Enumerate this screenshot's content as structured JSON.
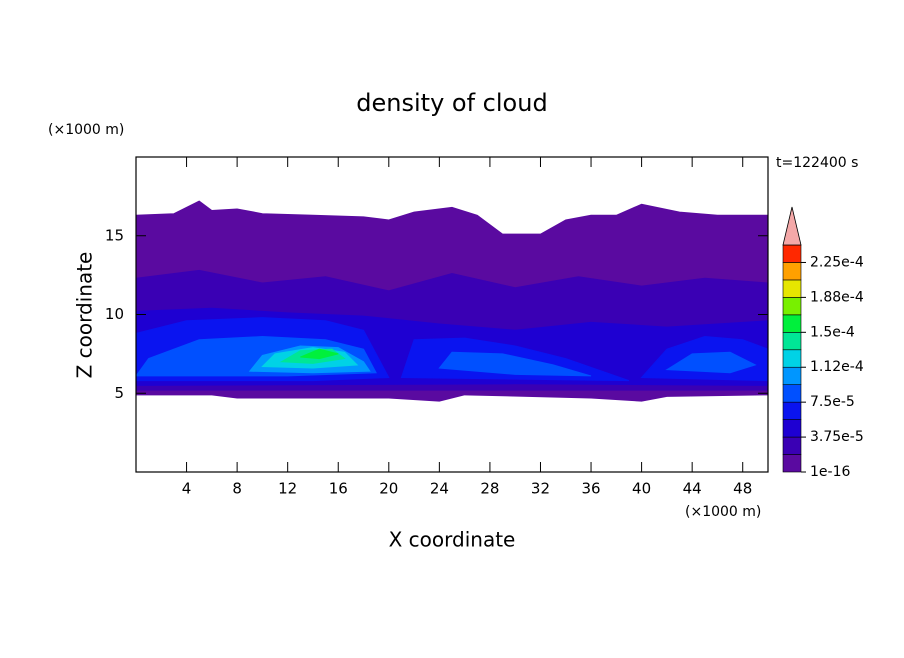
{
  "chart_data": {
    "type": "contour",
    "title": "density of cloud",
    "xlabel": "X coordinate",
    "ylabel": "Z coordinate",
    "xunit": "(×1000 m)",
    "yunit": "(×1000 m)",
    "annotation": "t=122400 s",
    "xlim": [
      0,
      50
    ],
    "xticks": [
      4,
      8,
      12,
      16,
      20,
      24,
      28,
      32,
      36,
      40,
      44,
      48
    ],
    "ylim": [
      0,
      20
    ],
    "yticks": [
      5,
      10,
      15
    ],
    "clim": [
      0,
      0.00024375
    ],
    "cticks": [
      {
        "value": 1e-16,
        "label": "1e-16"
      },
      {
        "value": 3.75e-05,
        "label": "3.75e-5"
      },
      {
        "value": 7.5e-05,
        "label": "7.5e-5"
      },
      {
        "value": 0.0001125,
        "label": "1.12e-4"
      },
      {
        "value": 0.00015,
        "label": "1.5e-4"
      },
      {
        "value": 0.0001875,
        "label": "1.88e-4"
      },
      {
        "value": 0.000225,
        "label": "2.25e-4"
      }
    ],
    "colors": [
      "#5a0aa0",
      "#3a00b4",
      "#1e00d2",
      "#0a14f0",
      "#0050ff",
      "#0096ff",
      "#00d2e6",
      "#00e696",
      "#00f03c",
      "#78f000",
      "#e6e600",
      "#ffa000",
      "#ff2800"
    ],
    "extend_color": "#f4a8a8",
    "contours": [
      {
        "level": 1e-16,
        "points": [
          [
            0,
            4.9
          ],
          [
            0,
            16.3
          ],
          [
            3,
            16.4
          ],
          [
            5,
            17.2
          ],
          [
            6,
            16.6
          ],
          [
            8,
            16.7
          ],
          [
            10,
            16.4
          ],
          [
            14,
            16.3
          ],
          [
            18,
            16.2
          ],
          [
            20,
            16.0
          ],
          [
            22,
            16.5
          ],
          [
            25,
            16.8
          ],
          [
            27,
            16.3
          ],
          [
            29,
            15.1
          ],
          [
            32,
            15.1
          ],
          [
            34,
            16.0
          ],
          [
            36,
            16.3
          ],
          [
            38,
            16.3
          ],
          [
            40,
            17.0
          ],
          [
            43,
            16.5
          ],
          [
            46,
            16.3
          ],
          [
            50,
            16.3
          ],
          [
            50,
            4.9
          ],
          [
            42,
            4.8
          ],
          [
            40,
            4.5
          ],
          [
            36,
            4.7
          ],
          [
            26,
            4.9
          ],
          [
            24,
            4.5
          ],
          [
            20,
            4.7
          ],
          [
            8,
            4.7
          ],
          [
            6,
            4.9
          ]
        ]
      },
      {
        "level": 1.875e-05,
        "points": [
          [
            0,
            5.2
          ],
          [
            0,
            12.3
          ],
          [
            5,
            12.8
          ],
          [
            10,
            12.0
          ],
          [
            15,
            12.4
          ],
          [
            20,
            11.5
          ],
          [
            25,
            12.6
          ],
          [
            30,
            11.7
          ],
          [
            35,
            12.4
          ],
          [
            40,
            11.8
          ],
          [
            45,
            12.3
          ],
          [
            50,
            12.0
          ],
          [
            50,
            5.2
          ],
          [
            30,
            5.2
          ]
        ]
      },
      {
        "level": 3.75e-05,
        "points": [
          [
            0,
            5.5
          ],
          [
            0,
            10.2
          ],
          [
            6,
            10.4
          ],
          [
            12,
            10.1
          ],
          [
            18,
            9.9
          ],
          [
            24,
            9.4
          ],
          [
            30,
            9.0
          ],
          [
            36,
            9.5
          ],
          [
            42,
            9.2
          ],
          [
            50,
            9.6
          ],
          [
            50,
            5.5
          ],
          [
            30,
            5.6
          ]
        ]
      },
      {
        "level": 5.625e-05,
        "points": [
          [
            0,
            5.8
          ],
          [
            0,
            8.8
          ],
          [
            4,
            9.6
          ],
          [
            10,
            9.8
          ],
          [
            15,
            9.6
          ],
          [
            18,
            9.0
          ],
          [
            20,
            6.0
          ],
          [
            14,
            5.8
          ]
        ]
      },
      {
        "level": 5.625e-05,
        "points": [
          [
            21,
            6.0
          ],
          [
            22,
            8.4
          ],
          [
            26,
            8.5
          ],
          [
            30,
            8.0
          ],
          [
            34,
            7.2
          ],
          [
            39,
            5.8
          ],
          [
            30,
            5.9
          ]
        ]
      },
      {
        "level": 5.625e-05,
        "points": [
          [
            40,
            6.0
          ],
          [
            42,
            7.8
          ],
          [
            45,
            8.6
          ],
          [
            48,
            8.4
          ],
          [
            50,
            7.8
          ],
          [
            50,
            5.8
          ]
        ]
      },
      {
        "level": 7.5e-05,
        "points": [
          [
            0,
            6.1
          ],
          [
            1,
            7.2
          ],
          [
            5,
            8.4
          ],
          [
            10,
            8.6
          ],
          [
            15,
            8.4
          ],
          [
            18,
            7.8
          ],
          [
            19,
            6.3
          ],
          [
            12,
            6.1
          ]
        ]
      },
      {
        "level": 7.5e-05,
        "points": [
          [
            24,
            6.6
          ],
          [
            25,
            7.6
          ],
          [
            29,
            7.5
          ],
          [
            33,
            6.8
          ],
          [
            36,
            6.1
          ],
          [
            30,
            6.2
          ]
        ]
      },
      {
        "level": 7.5e-05,
        "points": [
          [
            42,
            6.5
          ],
          [
            44,
            7.5
          ],
          [
            47,
            7.6
          ],
          [
            49,
            6.8
          ],
          [
            47,
            6.3
          ]
        ]
      },
      {
        "level": 9.375e-05,
        "points": [
          [
            9,
            6.4
          ],
          [
            10,
            7.4
          ],
          [
            13,
            8.0
          ],
          [
            16,
            7.9
          ],
          [
            18,
            7.0
          ],
          [
            18.5,
            6.4
          ],
          [
            14,
            6.3
          ]
        ]
      },
      {
        "level": 0.0001125,
        "points": [
          [
            10,
            6.7
          ],
          [
            11,
            7.5
          ],
          [
            14,
            7.9
          ],
          [
            16.5,
            7.6
          ],
          [
            17.5,
            6.8
          ],
          [
            14,
            6.6
          ]
        ]
      },
      {
        "level": 0.00013125,
        "points": [
          [
            11.5,
            7.0
          ],
          [
            13,
            7.7
          ],
          [
            15.5,
            7.8
          ],
          [
            16.5,
            7.2
          ],
          [
            14,
            6.9
          ]
        ]
      },
      {
        "level": 0.00015,
        "points": [
          [
            13,
            7.3
          ],
          [
            14.5,
            7.8
          ],
          [
            16,
            7.5
          ],
          [
            14.5,
            7.2
          ]
        ]
      }
    ]
  }
}
